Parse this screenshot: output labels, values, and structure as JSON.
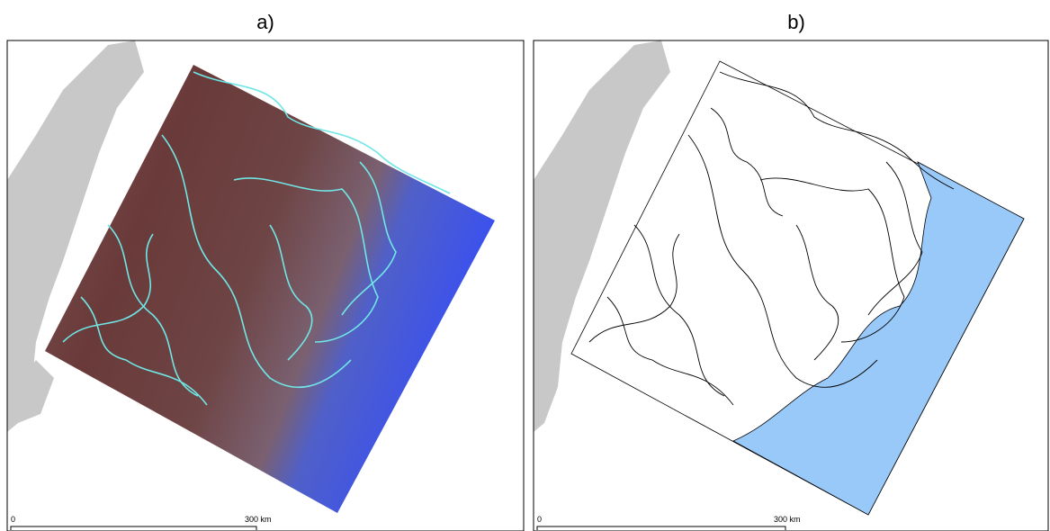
{
  "panels": [
    {
      "label": "a)",
      "scale_start": "0",
      "scale_end": "300 km"
    },
    {
      "label": "b)",
      "scale_start": "0",
      "scale_end": "300 km"
    }
  ]
}
